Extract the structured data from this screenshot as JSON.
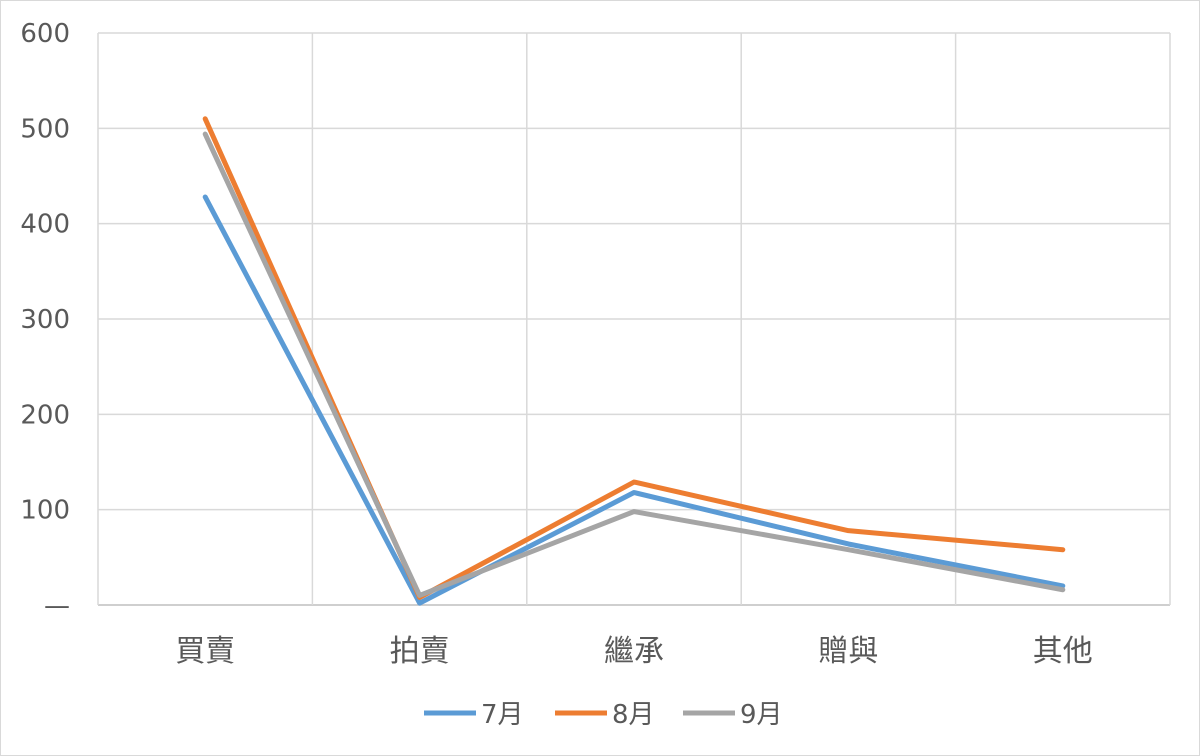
{
  "chart_data": {
    "type": "line",
    "title": "",
    "xlabel": "",
    "ylabel": "",
    "categories": [
      "買賣",
      "拍賣",
      "繼承",
      "贈與",
      "其他"
    ],
    "y_ticks": [
      "600",
      "500",
      "400",
      "300",
      "200",
      "100",
      "—"
    ],
    "ylim": [
      0,
      600
    ],
    "grid": true,
    "legend_position": "bottom",
    "series": [
      {
        "name": "7月",
        "color": "#5b9bd5",
        "values": [
          428,
          2,
          118,
          64,
          20
        ]
      },
      {
        "name": "8月",
        "color": "#ed7d31",
        "values": [
          510,
          8,
          129,
          78,
          58
        ]
      },
      {
        "name": "9月",
        "color": "#a5a5a5",
        "values": [
          494,
          10,
          98,
          58,
          16
        ]
      }
    ]
  }
}
